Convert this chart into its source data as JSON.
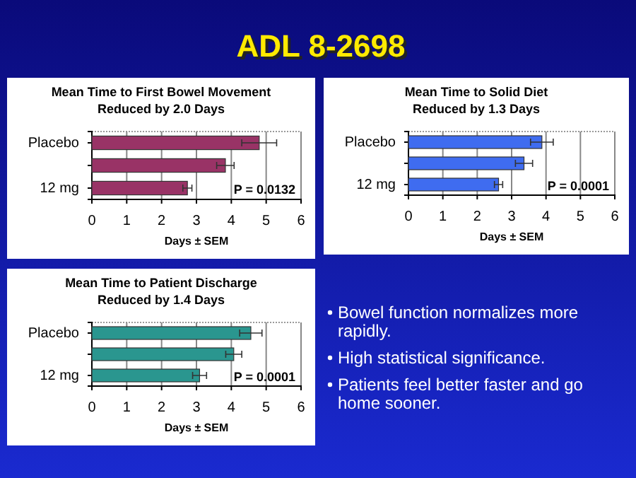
{
  "chart_data": [
    {
      "type": "bar",
      "orientation": "horizontal",
      "title": "Mean Time to First Bowel Movement\nReduced by 2.0 Days",
      "xlabel": "Days ± SEM",
      "categories": [
        "Placebo",
        null,
        "12 mg"
      ],
      "values": [
        4.8,
        3.83,
        2.74
      ],
      "errors": [
        0.5,
        0.25,
        0.13
      ],
      "color": "#993366",
      "xlim": [
        0,
        6
      ],
      "xticks": [
        0,
        1,
        2,
        3,
        4,
        5,
        6
      ],
      "grid": "x",
      "annotations": [
        "P = 0.0132"
      ]
    },
    {
      "type": "bar",
      "orientation": "horizontal",
      "title": "Mean Time to Solid Diet\nReduced by 1.3 Days",
      "xlabel": "Days ± SEM",
      "categories": [
        "Placebo",
        null,
        "12 mg"
      ],
      "values": [
        3.88,
        3.36,
        2.62
      ],
      "errors": [
        0.33,
        0.25,
        0.12
      ],
      "color": "#3f6cf0",
      "xlim": [
        0,
        6
      ],
      "xticks": [
        0,
        1,
        2,
        3,
        4,
        5,
        6
      ],
      "grid": "x",
      "annotations": [
        "P = 0.0001"
      ]
    },
    {
      "type": "bar",
      "orientation": "horizontal",
      "title": "Mean Time to Patient Discharge\nReduced by 1.4 Days",
      "xlabel": "Days ± SEM",
      "categories": [
        "Placebo",
        null,
        "12 mg"
      ],
      "values": [
        4.56,
        4.07,
        3.09
      ],
      "errors": [
        0.32,
        0.23,
        0.2
      ],
      "color": "#2a968f",
      "xlim": [
        0,
        6
      ],
      "xticks": [
        0,
        1,
        2,
        3,
        4,
        5,
        6
      ],
      "grid": "x",
      "annotations": [
        "P = 0.0001"
      ]
    },
    {
      "type": "other",
      "title": "ADL 8-2698",
      "annotations": [
        "Bowel function normalizes more rapidly.",
        "High statistical significance.",
        "Patients feel better faster and go home sooner."
      ]
    }
  ]
}
